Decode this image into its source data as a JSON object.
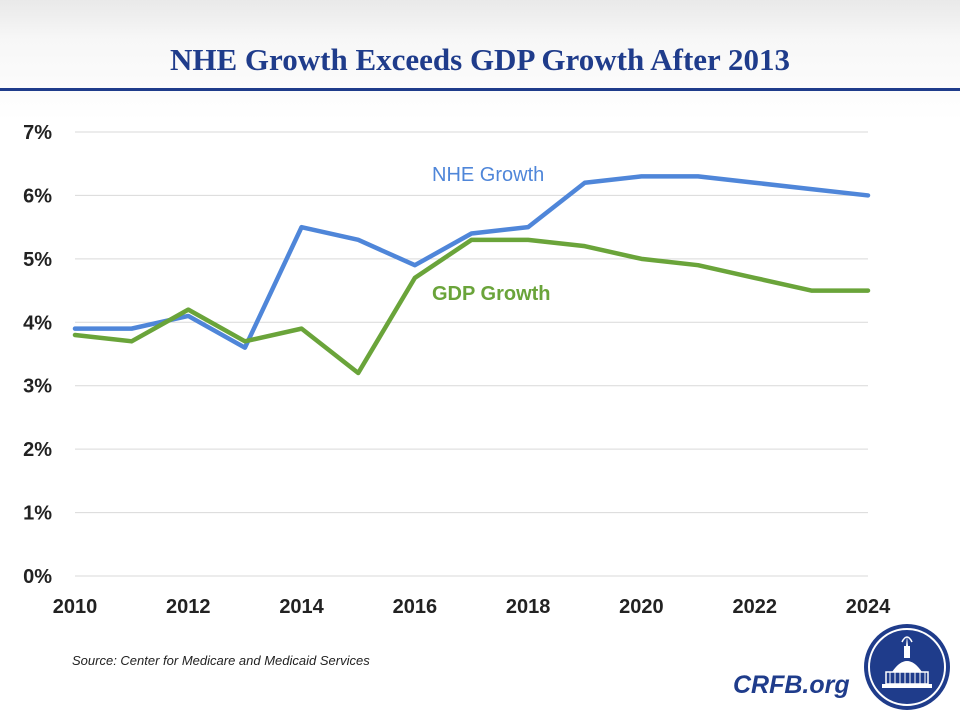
{
  "title": "NHE Growth Exceeds GDP Growth After 2013",
  "source": "Source: Center for Medicare and Medicaid Services",
  "brand": "CRFB.org",
  "colors": {
    "title": "#1f3c8b",
    "nhe": "#4f86d9",
    "gdp": "#6aa43a",
    "grid": "#d9d9d9"
  },
  "chart_data": {
    "type": "line",
    "x": [
      2010,
      2011,
      2012,
      2013,
      2014,
      2015,
      2016,
      2017,
      2018,
      2019,
      2020,
      2021,
      2022,
      2023,
      2024
    ],
    "xticks": [
      "2010",
      "2012",
      "2014",
      "2016",
      "2018",
      "2020",
      "2022",
      "2024"
    ],
    "yticks": [
      "0%",
      "1%",
      "2%",
      "3%",
      "4%",
      "5%",
      "6%",
      "7%"
    ],
    "ylim": [
      0,
      7
    ],
    "grid": true,
    "series": [
      {
        "name": "NHE Growth",
        "color": "#4f86d9",
        "values": [
          3.9,
          3.9,
          4.1,
          3.6,
          5.5,
          5.3,
          4.9,
          5.4,
          5.5,
          6.2,
          6.3,
          6.3,
          6.2,
          6.1,
          6.0
        ]
      },
      {
        "name": "GDP Growth",
        "color": "#6aa43a",
        "values": [
          3.8,
          3.7,
          4.2,
          3.7,
          3.9,
          3.2,
          4.7,
          5.3,
          5.3,
          5.2,
          5.0,
          4.9,
          4.7,
          4.5,
          4.5
        ]
      }
    ]
  }
}
